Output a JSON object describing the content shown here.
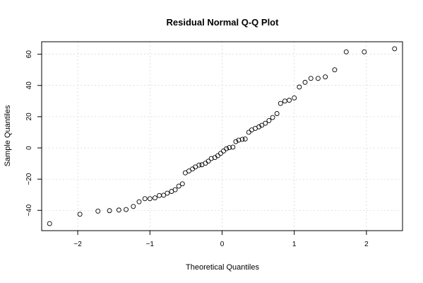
{
  "chart_data": {
    "type": "scatter",
    "title": "Residual Normal Q-Q Plot",
    "xlabel": "Theoretical Quantiles",
    "ylabel": "Sample Quantiles",
    "xlim": [
      -2.5,
      2.5
    ],
    "ylim": [
      -53,
      68
    ],
    "xticks": [
      -2,
      -1,
      0,
      1,
      2
    ],
    "yticks": [
      -40,
      -20,
      0,
      20,
      40,
      60
    ],
    "xtick_labels": [
      "−2",
      "−1",
      "0",
      "1",
      "2"
    ],
    "ytick_labels": [
      "−40",
      "−20",
      "0",
      "20",
      "40",
      "60"
    ],
    "grid": true,
    "points": [
      {
        "x": -2.39,
        "y": -48.5
      },
      {
        "x": -1.97,
        "y": -42.5
      },
      {
        "x": -1.72,
        "y": -40.5
      },
      {
        "x": -1.56,
        "y": -40.2
      },
      {
        "x": -1.43,
        "y": -39.8
      },
      {
        "x": -1.33,
        "y": -39.5
      },
      {
        "x": -1.23,
        "y": -37.5
      },
      {
        "x": -1.15,
        "y": -34.5
      },
      {
        "x": -1.07,
        "y": -32.5
      },
      {
        "x": -1.0,
        "y": -32.5
      },
      {
        "x": -0.93,
        "y": -32.0
      },
      {
        "x": -0.87,
        "y": -30.5
      },
      {
        "x": -0.81,
        "y": -30.3
      },
      {
        "x": -0.76,
        "y": -29.0
      },
      {
        "x": -0.7,
        "y": -27.9
      },
      {
        "x": -0.65,
        "y": -26.8
      },
      {
        "x": -0.6,
        "y": -24.5
      },
      {
        "x": -0.55,
        "y": -23.0
      },
      {
        "x": -0.51,
        "y": -16.0
      },
      {
        "x": -0.46,
        "y": -14.8
      },
      {
        "x": -0.41,
        "y": -13.5
      },
      {
        "x": -0.37,
        "y": -12.2
      },
      {
        "x": -0.32,
        "y": -11.0
      },
      {
        "x": -0.28,
        "y": -10.8
      },
      {
        "x": -0.23,
        "y": -9.8
      },
      {
        "x": -0.19,
        "y": -8.5
      },
      {
        "x": -0.15,
        "y": -6.8
      },
      {
        "x": -0.1,
        "y": -6.2
      },
      {
        "x": -0.06,
        "y": -5.0
      },
      {
        "x": -0.02,
        "y": -3.5
      },
      {
        "x": 0.02,
        "y": -2.0
      },
      {
        "x": 0.06,
        "y": -0.5
      },
      {
        "x": 0.1,
        "y": 0.2
      },
      {
        "x": 0.15,
        "y": 0.5
      },
      {
        "x": 0.19,
        "y": 4.0
      },
      {
        "x": 0.23,
        "y": 5.0
      },
      {
        "x": 0.28,
        "y": 5.5
      },
      {
        "x": 0.32,
        "y": 5.7
      },
      {
        "x": 0.37,
        "y": 10.0
      },
      {
        "x": 0.41,
        "y": 11.5
      },
      {
        "x": 0.46,
        "y": 12.5
      },
      {
        "x": 0.51,
        "y": 13.5
      },
      {
        "x": 0.55,
        "y": 14.5
      },
      {
        "x": 0.6,
        "y": 15.8
      },
      {
        "x": 0.65,
        "y": 17.5
      },
      {
        "x": 0.7,
        "y": 19.5
      },
      {
        "x": 0.76,
        "y": 22.0
      },
      {
        "x": 0.81,
        "y": 28.5
      },
      {
        "x": 0.87,
        "y": 30.0
      },
      {
        "x": 0.93,
        "y": 30.5
      },
      {
        "x": 1.0,
        "y": 32.0
      },
      {
        "x": 1.07,
        "y": 39.0
      },
      {
        "x": 1.15,
        "y": 42.0
      },
      {
        "x": 1.23,
        "y": 44.5
      },
      {
        "x": 1.33,
        "y": 44.5
      },
      {
        "x": 1.43,
        "y": 45.5
      },
      {
        "x": 1.56,
        "y": 50.0
      },
      {
        "x": 1.72,
        "y": 61.5
      },
      {
        "x": 1.97,
        "y": 61.5
      },
      {
        "x": 2.39,
        "y": 63.5
      }
    ]
  }
}
